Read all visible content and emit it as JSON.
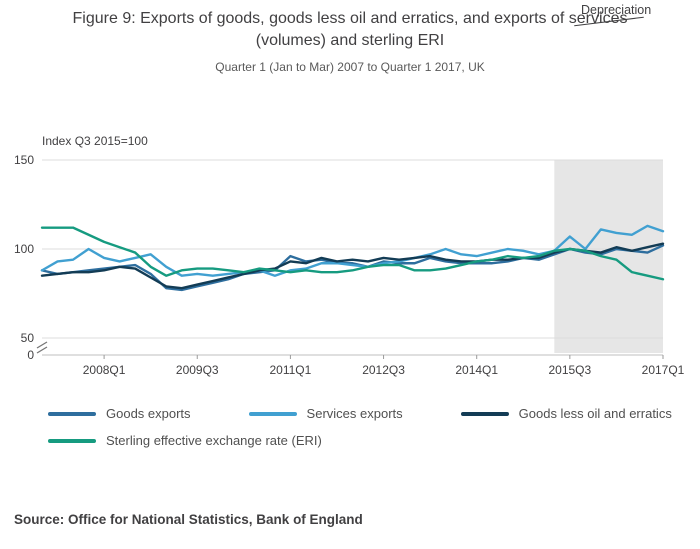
{
  "header": {
    "title": "Figure 9: Exports of goods, goods less oil and erratics, and exports of services (volumes) and sterling ERI",
    "subtitle": "Quarter 1 (Jan to Mar) 2007 to Quarter 1 2017, UK"
  },
  "annotation": {
    "label": "Depreciation"
  },
  "chart_data": {
    "type": "line",
    "title": "Figure 9: Exports of goods, goods less oil and erratics, and exports of services (volumes) and sterling ERI",
    "subtitle": "Quarter 1 (Jan to Mar) 2007 to Quarter 1 2017, UK",
    "index_label": "Index Q3 2015=100",
    "x_unit": "quarter",
    "x_start": "2007Q1",
    "x_end": "2017Q1",
    "x_tick_labels": [
      "2008Q1",
      "2009Q3",
      "2011Q1",
      "2012Q3",
      "2014Q1",
      "2015Q3",
      "2017Q1"
    ],
    "x_tick_indices": [
      4,
      10,
      16,
      22,
      28,
      34,
      40
    ],
    "y_ticks": [
      0,
      50,
      100,
      150
    ],
    "y_gridlines": [
      50,
      100,
      150
    ],
    "y_axis_break": true,
    "ylim_display": [
      50,
      150
    ],
    "shaded_region": {
      "start_index": 33,
      "end_index": 40,
      "color": "#e6e6e6"
    },
    "series": [
      {
        "name": "Goods exports",
        "color": "#2e6e9e",
        "values": [
          88,
          86,
          87,
          88,
          89,
          90,
          91,
          86,
          78,
          77,
          79,
          81,
          83,
          86,
          87,
          88,
          96,
          93,
          94,
          92,
          92,
          90,
          93,
          92,
          92,
          95,
          93,
          92,
          92,
          92,
          93,
          95,
          94,
          97,
          100,
          98,
          97,
          100,
          99,
          98,
          102
        ]
      },
      {
        "name": "Services exports",
        "color": "#41a0d1",
        "values": [
          88,
          93,
          94,
          100,
          95,
          93,
          95,
          97,
          90,
          85,
          86,
          85,
          86,
          87,
          88,
          85,
          88,
          89,
          92,
          92,
          91,
          90,
          92,
          93,
          95,
          97,
          100,
          97,
          96,
          98,
          100,
          99,
          97,
          99,
          107,
          100,
          111,
          109,
          108,
          113,
          110
        ]
      },
      {
        "name": "Goods less oil and erratics",
        "color": "#133c55",
        "values": [
          85,
          86,
          87,
          87,
          88,
          90,
          89,
          84,
          79,
          78,
          80,
          82,
          84,
          86,
          88,
          89,
          93,
          92,
          95,
          93,
          94,
          93,
          95,
          94,
          95,
          96,
          94,
          93,
          93,
          94,
          94,
          95,
          95,
          98,
          100,
          99,
          98,
          101,
          99,
          101,
          103
        ]
      },
      {
        "name": "Sterling effective exchange rate (ERI)",
        "color": "#169b80",
        "values": [
          112,
          112,
          112,
          108,
          104,
          101,
          98,
          90,
          85,
          88,
          89,
          89,
          88,
          87,
          89,
          88,
          87,
          88,
          87,
          87,
          88,
          90,
          91,
          91,
          88,
          88,
          89,
          91,
          93,
          94,
          96,
          95,
          96,
          99,
          100,
          99,
          96,
          94,
          87,
          85,
          83
        ]
      }
    ]
  },
  "legend": {
    "items": [
      {
        "label": "Goods exports",
        "color": "#2e6e9e"
      },
      {
        "label": "Services exports",
        "color": "#41a0d1"
      },
      {
        "label": "Goods less oil and erratics",
        "color": "#133c55"
      },
      {
        "label": "Sterling effective exchange rate (ERI)",
        "color": "#169b80"
      }
    ]
  },
  "source": {
    "text": "Source: Office for National Statistics, Bank of England"
  }
}
